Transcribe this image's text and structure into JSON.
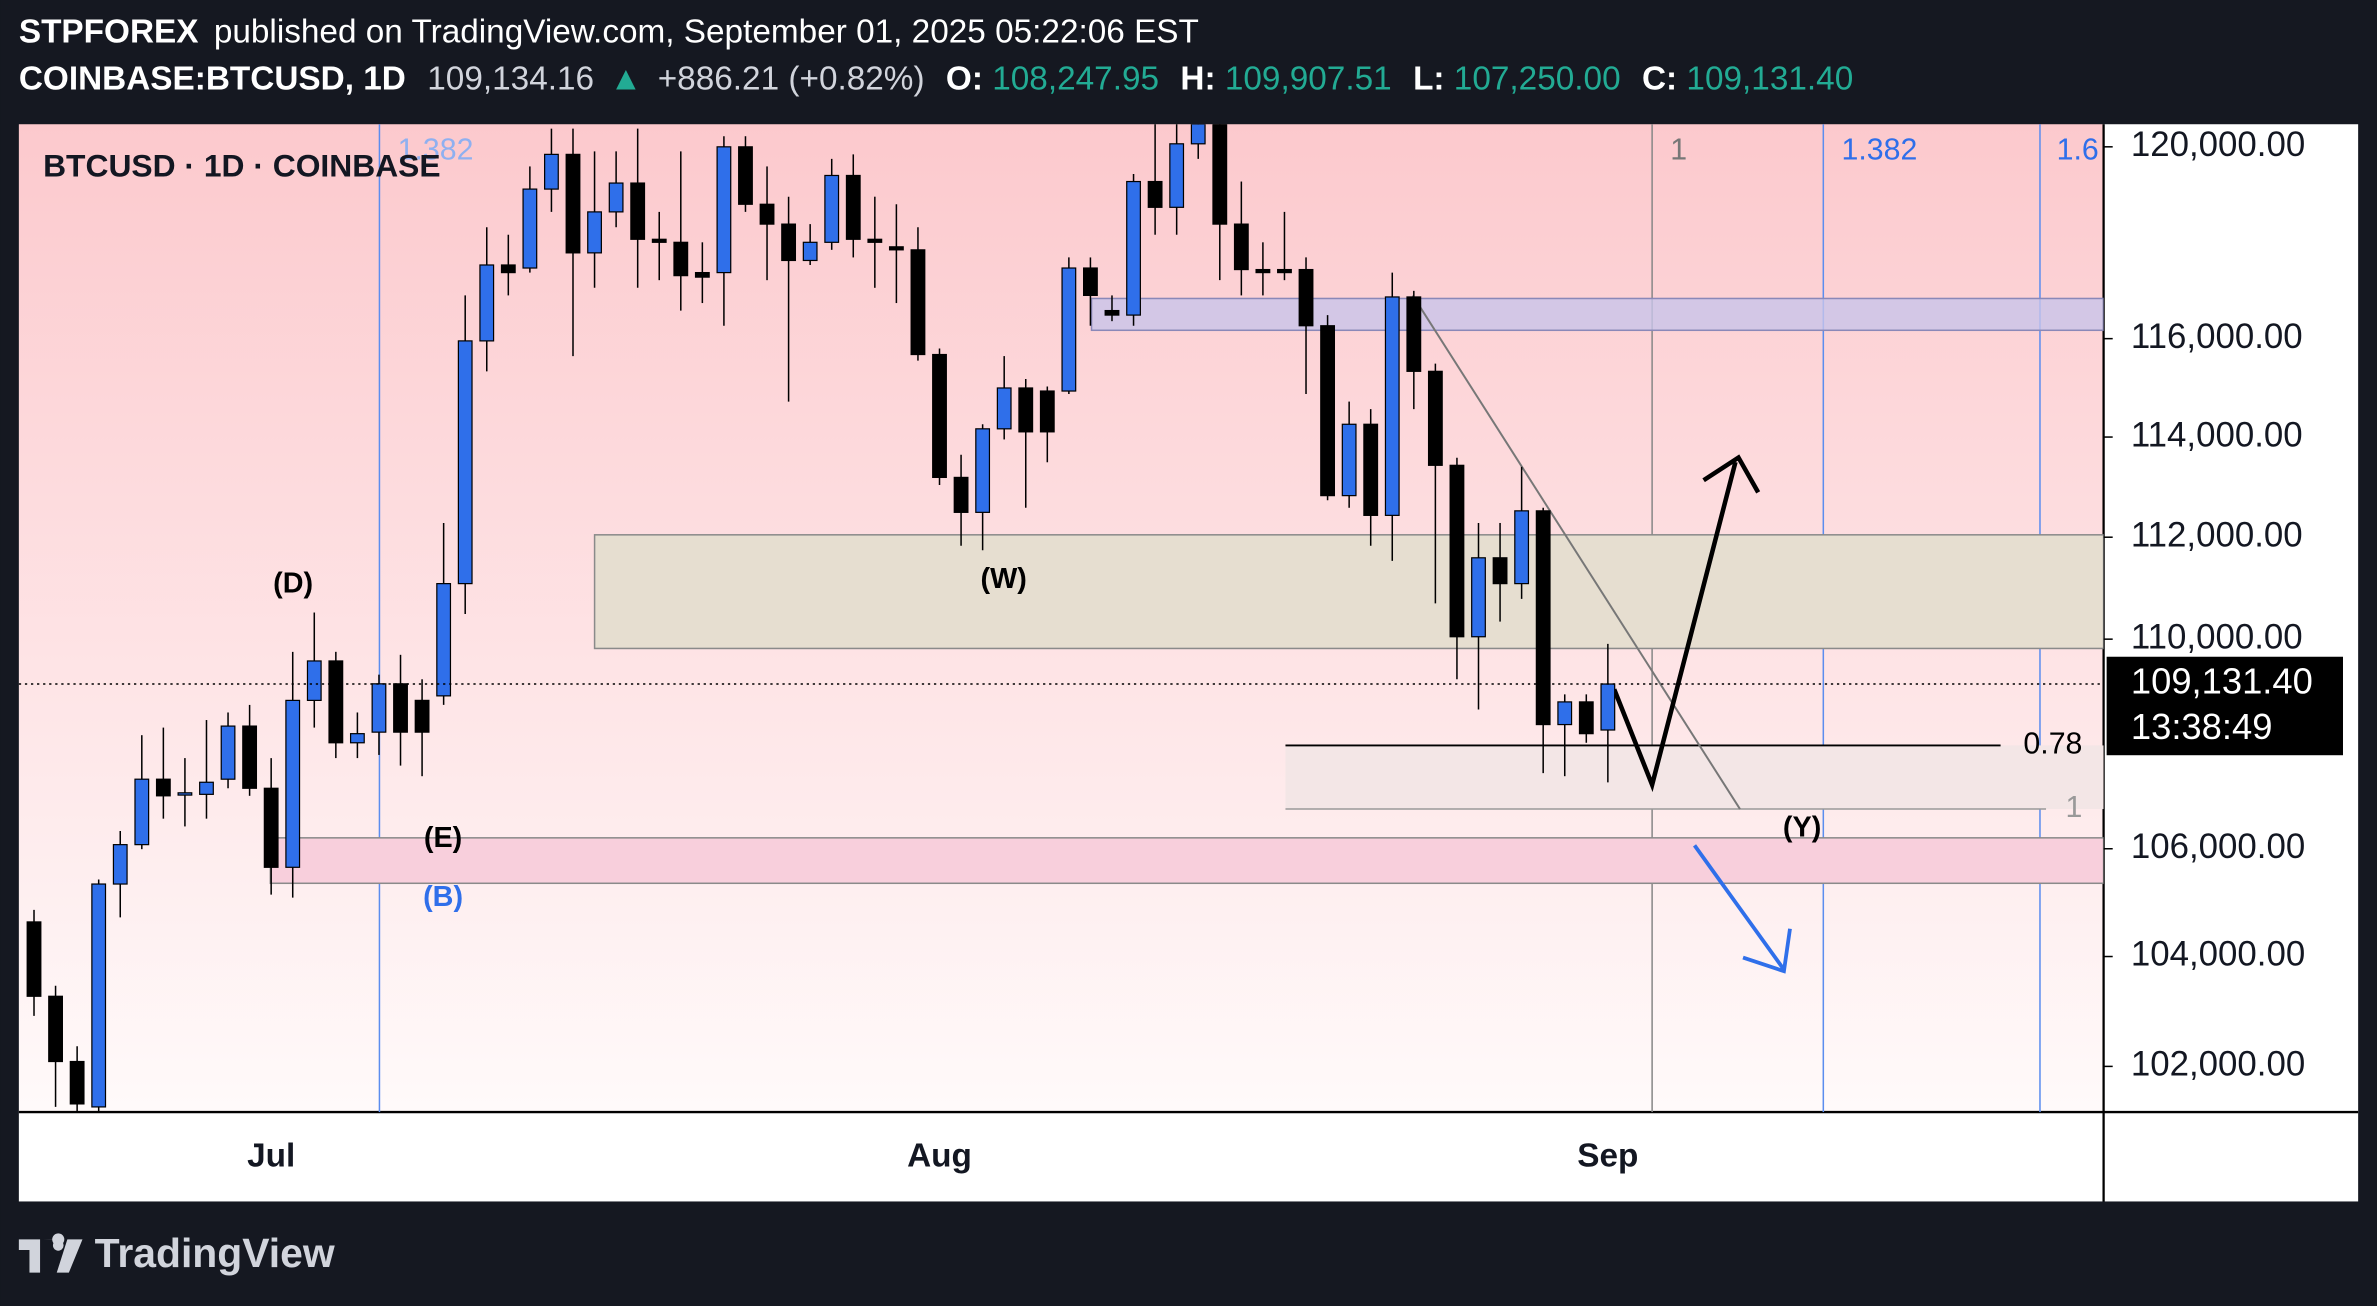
{
  "header": {
    "author": "STPFOREX",
    "published": "published on TradingView.com, September 01, 2025 05:22:06 EST",
    "symbol": "COINBASE:BTCUSD, 1D",
    "last": "109,134.16",
    "arrow": "▲",
    "change": "+886.21 (+0.82%)",
    "o_label": "O:",
    "open": "108,247.95",
    "h_label": "H:",
    "high": "109,907.51",
    "l_label": "L:",
    "low": "107,250.00",
    "c_label": "C:",
    "close": "109,131.40"
  },
  "chart_data": {
    "type": "candlestick",
    "title": "BTCUSD · 1D · COINBASE",
    "log_scale": true,
    "grid": false,
    "up_color": "#2f6fea",
    "down_color": "#000000",
    "categories": [
      null,
      null,
      null,
      null,
      null,
      null,
      null,
      null,
      null,
      null,
      null,
      "Jul",
      null,
      null,
      null,
      null,
      null,
      null,
      null,
      null,
      null,
      null,
      null,
      null,
      null,
      null,
      null,
      null,
      null,
      null,
      null,
      null,
      null,
      null,
      null,
      null,
      null,
      null,
      null,
      null,
      null,
      null,
      "Aug",
      null,
      null,
      null,
      null,
      null,
      null,
      null,
      null,
      null,
      null,
      null,
      null,
      null,
      null,
      null,
      null,
      null,
      null,
      null,
      null,
      null,
      null,
      null,
      null,
      null,
      null,
      null,
      null,
      null,
      null,
      "Sep"
    ],
    "open": [
      104638,
      103272,
      102088,
      101272,
      105341,
      106077,
      107311,
      107040,
      107024,
      107311,
      108323,
      107139,
      105653,
      108816,
      109577,
      108004,
      108207,
      109135,
      108816,
      108903,
      111085,
      115954,
      117520,
      117457,
      119107,
      119840,
      117772,
      118628,
      119234,
      118055,
      117992,
      117362,
      117362,
      120000,
      118788,
      118372,
      117614,
      117992,
      119394,
      118055,
      117898,
      117835,
      115675,
      113190,
      112493,
      114166,
      114993,
      114931,
      114931,
      117457,
      116577,
      116484,
      119266,
      118724,
      120064,
      120483,
      118372,
      117425,
      117425,
      117425,
      116265,
      112826,
      114258,
      112433,
      116858,
      115332,
      113432,
      110047,
      111593,
      111085,
      112523,
      108352,
      108787,
      108247.95
    ],
    "high": [
      104862,
      103464,
      102363,
      105426,
      106333,
      108149,
      108294,
      107712,
      108439,
      108584,
      108729,
      107712,
      109754,
      110519,
      109754,
      108584,
      109312,
      109696,
      109223,
      112282,
      116890,
      118307,
      118150,
      119585,
      120386,
      120386,
      119904,
      119904,
      120386,
      118628,
      119904,
      117992,
      120225,
      120225,
      119585,
      118947,
      118372,
      119745,
      119840,
      118947,
      118788,
      118307,
      115799,
      113644,
      114258,
      115643,
      115176,
      115023,
      117677,
      117677,
      116890,
      119426,
      120547,
      120612,
      120483,
      120547,
      119266,
      117992,
      118628,
      117677,
      116484,
      114717,
      114564,
      117362,
      116984,
      115488,
      113583,
      112282,
      112282,
      113402,
      112584,
      108932,
      108932,
      109907.51
    ],
    "low": [
      102914,
      101272,
      101190,
      101190,
      104722,
      105992,
      106565,
      106419,
      106565,
      107139,
      106996,
      105145,
      105088,
      108294,
      107712,
      107712,
      107772,
      107569,
      107368,
      108729,
      110490,
      115332,
      116890,
      117362,
      118628,
      115643,
      117047,
      118307,
      117047,
      117205,
      116577,
      116732,
      116265,
      118628,
      117205,
      114717,
      117520,
      117835,
      117677,
      117047,
      116732,
      115550,
      113038,
      111831,
      111742,
      113952,
      112584,
      113493,
      114870,
      116265,
      116359,
      116265,
      118150,
      118150,
      119745,
      117205,
      116890,
      116890,
      117205,
      114870,
      112735,
      112584,
      111831,
      111533,
      114564,
      110697,
      109223,
      108642,
      110342,
      110787,
      107425,
      107368,
      108004,
      107250
    ],
    "close": [
      103272,
      102088,
      101326,
      105341,
      106077,
      107311,
      106996,
      107053,
      107253,
      108323,
      107139,
      105653,
      108816,
      109577,
      108004,
      108178,
      109135,
      108207,
      108207,
      111085,
      115954,
      117520,
      117362,
      119107,
      119840,
      117772,
      118628,
      119234,
      118055,
      117992,
      117299,
      117268,
      120000,
      118788,
      118372,
      117614,
      117992,
      119394,
      118055,
      117992,
      117835,
      115675,
      113190,
      112493,
      114166,
      114993,
      114105,
      114105,
      117457,
      116890,
      116484,
      119266,
      118724,
      120064,
      120483,
      118372,
      117425,
      117362,
      117362,
      116265,
      112826,
      114258,
      112433,
      116858,
      115332,
      113432,
      110047,
      111593,
      111085,
      112523,
      108352,
      108787,
      108178,
      109131.4
    ],
    "ylim": [
      101180,
      120480
    ],
    "yticks": [
      {
        "value": 102000,
        "label": "102,000.00"
      },
      {
        "value": 104000,
        "label": "104,000.00"
      },
      {
        "value": 106000,
        "label": "106,000.00"
      },
      {
        "value": 110000,
        "label": "110,000.00"
      },
      {
        "value": 112000,
        "label": "112,000.00"
      },
      {
        "value": 114000,
        "label": "114,000.00"
      },
      {
        "value": 116000,
        "label": "116,000.00"
      },
      {
        "value": 120000,
        "label": "120,000.00"
      }
    ],
    "price_label": "109,131.40",
    "countdown": "13:38:49",
    "annotations": [
      "1.382",
      "1",
      "1.382",
      "1.6",
      "0.78",
      "1",
      "(D)",
      "(W)",
      "(E)",
      "(B)",
      "(Y)"
    ]
  },
  "footer": {
    "brand": "TradingView"
  }
}
